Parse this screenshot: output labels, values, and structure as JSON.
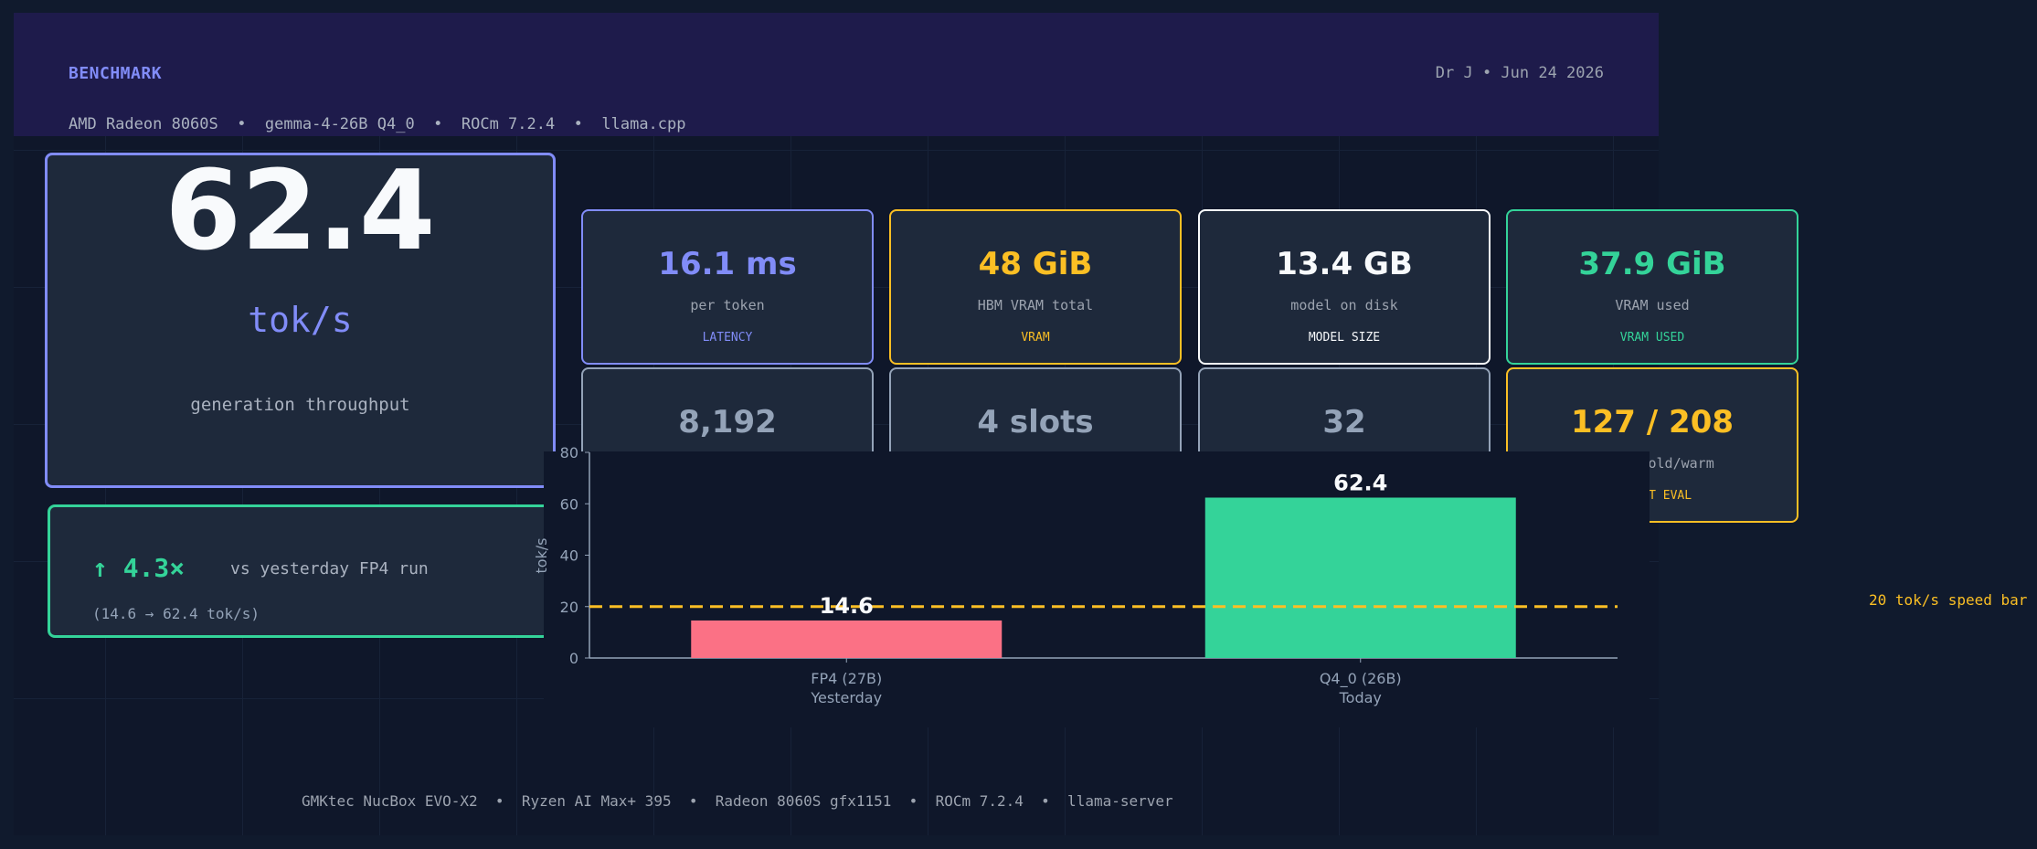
{
  "header": {
    "brand": "BENCHMARK",
    "byline": "Dr J  •  Jun 24 2026",
    "subline": "AMD Radeon 8060S  •  gemma-4-26B Q4_0  •  ROCm 7.2.4  •  llama.cpp"
  },
  "hero": {
    "value": "62.4",
    "unit": "tok/s",
    "caption": "generation throughput"
  },
  "speedup": {
    "headline": "↑ 4.3×",
    "description": "vs yesterday FP4 run",
    "detail": "(14.6 → 62.4 tok/s)"
  },
  "cards": [
    {
      "value": "16.1 ms",
      "desc": "per token",
      "tag": "LATENCY",
      "color": "#818cf8"
    },
    {
      "value": "48 GiB",
      "desc": "HBM VRAM total",
      "tag": "VRAM",
      "color": "#fbbf24"
    },
    {
      "value": "13.4 GB",
      "desc": "model on disk",
      "tag": "MODEL SIZE",
      "color": "#f8fafc"
    },
    {
      "value": "37.9 GiB",
      "desc": "VRAM used",
      "tag": "VRAM USED",
      "color": "#34d399"
    },
    {
      "value": "8,192",
      "desc": "",
      "tag": "",
      "color": "#94a3b8"
    },
    {
      "value": "4 slots",
      "desc": "",
      "tag": "",
      "color": "#94a3b8"
    },
    {
      "value": "32",
      "desc": "",
      "tag": "",
      "color": "#94a3b8"
    },
    {
      "value": "127 / 208",
      "desc": "tok/s cold/warm",
      "tag": "PROMPT EVAL",
      "color": "#fbbf24"
    }
  ],
  "chart_data": {
    "type": "bar",
    "categories": [
      "FP4 (27B)\nYesterday",
      "Q4_0 (26B)\nToday"
    ],
    "values": [
      14.6,
      62.4
    ],
    "colors": [
      "#fb7185",
      "#34d399"
    ],
    "ylabel": "tok/s",
    "ylim": [
      0,
      80
    ],
    "yticks": [
      0,
      20,
      40,
      60,
      80
    ],
    "reference_line": {
      "value": 20,
      "label": "20 tok/s speed bar",
      "color": "#fbbf24"
    }
  },
  "footer": "GMKtec NucBox EVO-X2  •  Ryzen AI Max+ 395  •  Radeon 8060S gfx1151  •  ROCm 7.2.4  •  llama-server"
}
